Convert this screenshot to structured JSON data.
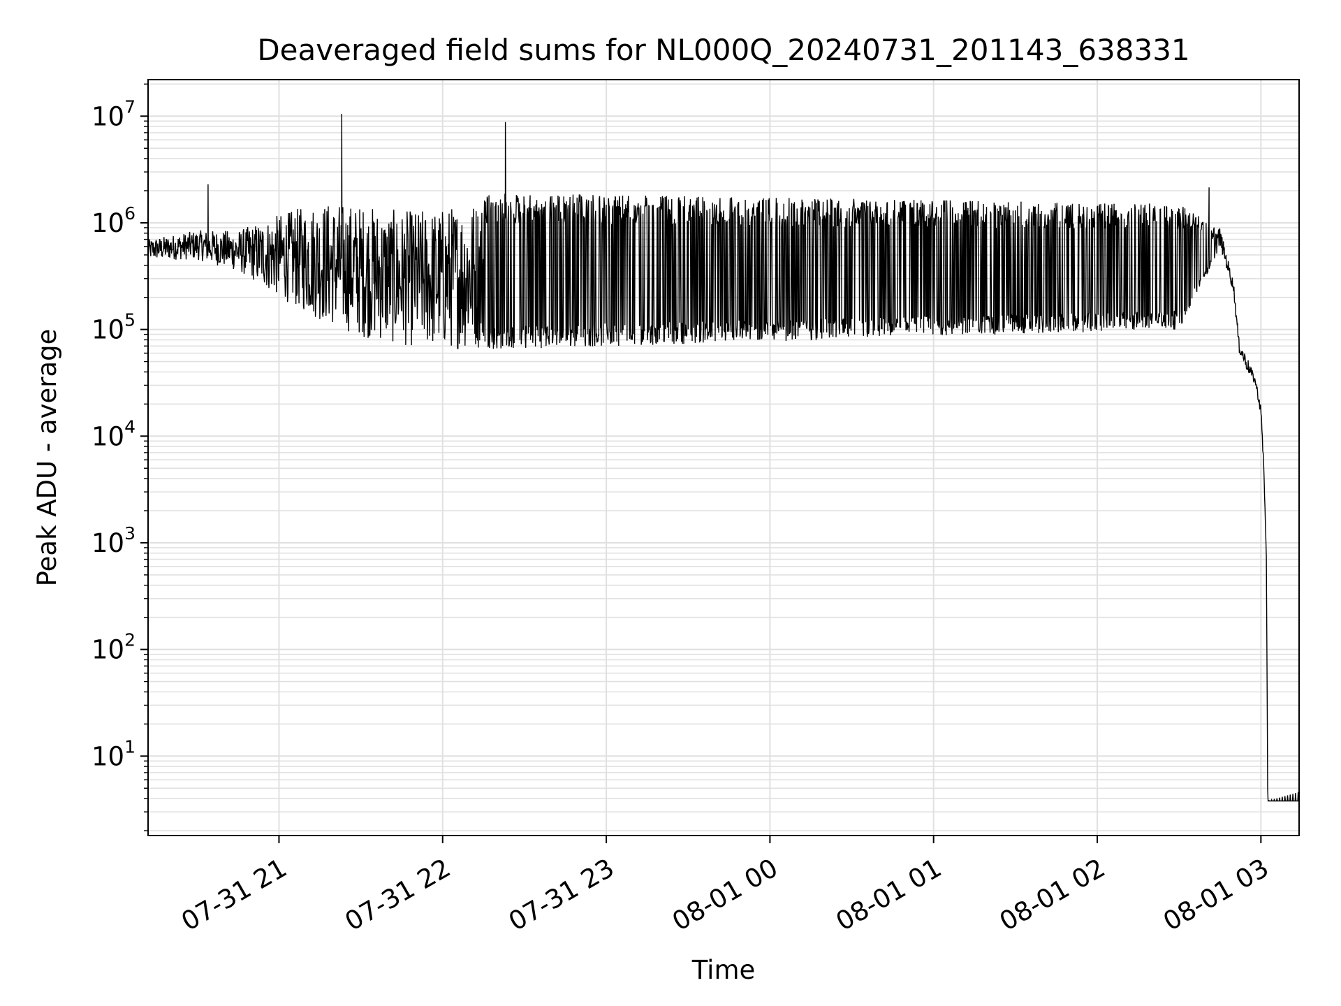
{
  "chart_data": {
    "type": "line",
    "title": "Deaveraged field sums for NL000Q_20240731_201143_638331",
    "xlabel": "Time",
    "ylabel": "Peak ADU - average",
    "yscale": "log",
    "ylim": [
      1.8,
      22000000
    ],
    "xlim": [
      "2024-07-31 20:12",
      "2024-08-01 03:14"
    ],
    "grid": true,
    "line_color": "#000000",
    "grid_color": "#e0e0e0",
    "x_ticks": [
      {
        "value": "2024-07-31 21:00",
        "label": "07-31 21"
      },
      {
        "value": "2024-07-31 22:00",
        "label": "07-31 22"
      },
      {
        "value": "2024-07-31 23:00",
        "label": "07-31 23"
      },
      {
        "value": "2024-08-01 00:00",
        "label": "08-01 00"
      },
      {
        "value": "2024-08-01 01:00",
        "label": "08-01 01"
      },
      {
        "value": "2024-08-01 02:00",
        "label": "08-01 02"
      },
      {
        "value": "2024-08-01 03:00",
        "label": "08-01 03"
      }
    ],
    "y_ticks": [
      {
        "value": 10,
        "base": "10",
        "exp": "1"
      },
      {
        "value": 100,
        "base": "10",
        "exp": "2"
      },
      {
        "value": 1000,
        "base": "10",
        "exp": "3"
      },
      {
        "value": 10000,
        "base": "10",
        "exp": "4"
      },
      {
        "value": 100000,
        "base": "10",
        "exp": "5"
      },
      {
        "value": 1000000,
        "base": "10",
        "exp": "6"
      },
      {
        "value": 10000000,
        "base": "10",
        "exp": "7"
      }
    ],
    "series": [
      {
        "envelope": [
          {
            "t": "2024-07-31 20:12",
            "low": 450000,
            "high": 700000
          },
          {
            "t": "2024-07-31 20:30",
            "low": 450000,
            "high": 850000
          },
          {
            "t": "2024-07-31 20:45",
            "low": 350000,
            "high": 850000
          },
          {
            "t": "2024-07-31 21:00",
            "low": 200000,
            "high": 1200000
          },
          {
            "t": "2024-07-31 21:15",
            "low": 120000,
            "high": 1600000
          },
          {
            "t": "2024-07-31 21:30",
            "low": 85000,
            "high": 1500000
          },
          {
            "t": "2024-07-31 21:45",
            "low": 70000,
            "high": 1300000
          },
          {
            "t": "2024-07-31 22:00",
            "low": 65000,
            "high": 1400000
          },
          {
            "t": "2024-07-31 22:20",
            "low": 65000,
            "high": 1900000
          },
          {
            "t": "2024-08-01 02:30",
            "low": 100000,
            "high": 1500000
          },
          {
            "t": "2024-08-01 02:42",
            "low": 400000,
            "high": 1000000
          },
          {
            "t": "2024-08-01 02:45",
            "low": 600000,
            "high": 900000
          },
          {
            "t": "2024-08-01 02:50",
            "low": 220000,
            "high": 280000
          },
          {
            "t": "2024-08-01 02:52",
            "low": 60000,
            "high": 80000
          },
          {
            "t": "2024-08-01 02:55",
            "low": 40000,
            "high": 55000
          },
          {
            "t": "2024-08-01 02:58",
            "low": 30000,
            "high": 35000
          },
          {
            "t": "2024-08-01 03:00",
            "low": 15000,
            "high": 20000
          },
          {
            "t": "2024-08-01 03:01",
            "low": 5000,
            "high": 6000
          },
          {
            "t": "2024-08-01 03:02",
            "low": 700,
            "high": 900
          },
          {
            "t": "2024-08-01 03:02:30",
            "low": 3.8,
            "high": 3.8
          },
          {
            "t": "2024-08-01 03:14",
            "low": 3.8,
            "high": 4.6
          }
        ],
        "spikes": [
          {
            "t": "2024-07-31 20:34",
            "value": 2300000
          },
          {
            "t": "2024-07-31 21:23",
            "value": 10500000
          },
          {
            "t": "2024-07-31 22:23",
            "value": 8800000
          },
          {
            "t": "2024-08-01 02:41",
            "value": 2150000
          }
        ]
      }
    ]
  }
}
